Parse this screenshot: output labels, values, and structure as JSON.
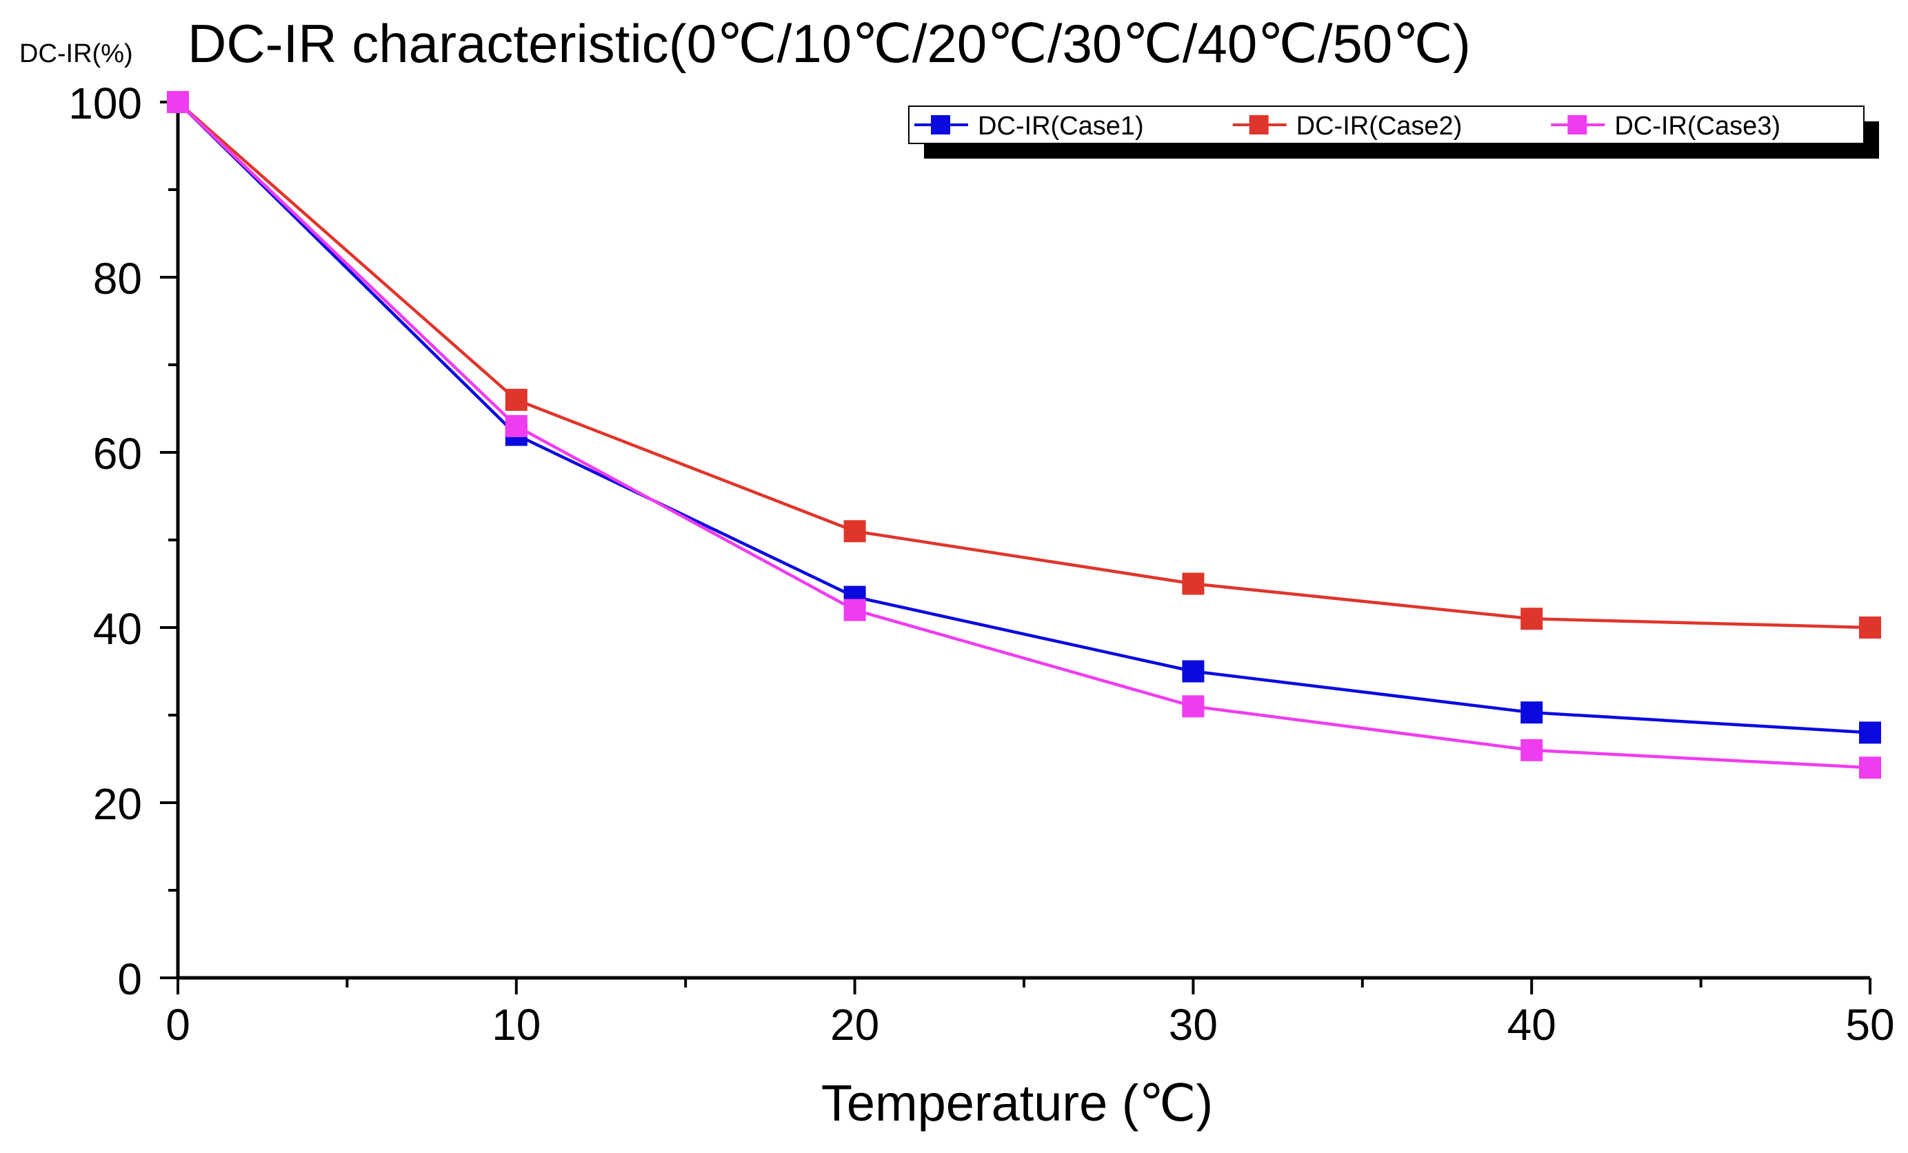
{
  "chart_data": {
    "type": "line",
    "title": "DC-IR characteristic(0℃/10℃/20℃/30℃/40℃/50℃)",
    "ylabel": "DC-IR(%)",
    "xlabel": "Temperature (℃)",
    "x": [
      0,
      10,
      20,
      30,
      40,
      50
    ],
    "xlim": [
      0,
      50
    ],
    "ylim": [
      0,
      100
    ],
    "xticks": [
      0,
      10,
      20,
      30,
      40,
      50
    ],
    "xtick_labels": [
      "0",
      "10",
      "20",
      "30",
      "40",
      "50"
    ],
    "yticks": [
      0,
      20,
      40,
      60,
      80,
      100
    ],
    "ytick_labels": [
      "0",
      "20",
      "40",
      "60",
      "80",
      "100"
    ],
    "grid": false,
    "legend_position": "top-right",
    "series": [
      {
        "name": "DC-IR(Case1)",
        "color": "#0a0adf",
        "values": [
          100,
          62,
          43.5,
          35,
          30.3,
          28
        ]
      },
      {
        "name": "DC-IR(Case2)",
        "color": "#e0352b",
        "values": [
          100,
          66,
          51,
          45,
          41,
          40
        ]
      },
      {
        "name": "DC-IR(Case3)",
        "color": "#f03cf0",
        "values": [
          100,
          63,
          42,
          31,
          26,
          24
        ]
      }
    ]
  }
}
